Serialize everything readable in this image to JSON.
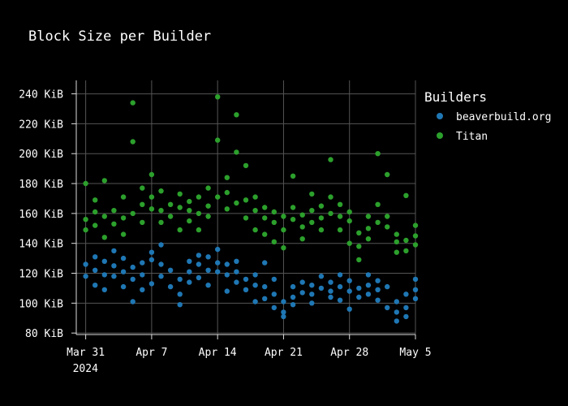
{
  "chart_data": {
    "type": "scatter",
    "title": "Block Size per Builder",
    "xlabel": "",
    "ylabel": "",
    "x_range": [
      "2024-03-30",
      "2024-05-05"
    ],
    "y_range": [
      79,
      249
    ],
    "y_ticks": [
      {
        "value": 80,
        "label": "80 KiB"
      },
      {
        "value": 100,
        "label": "100 KiB"
      },
      {
        "value": 120,
        "label": "120 KiB"
      },
      {
        "value": 140,
        "label": "140 KiB"
      },
      {
        "value": 160,
        "label": "160 KiB"
      },
      {
        "value": 180,
        "label": "180 KiB"
      },
      {
        "value": 200,
        "label": "200 KiB"
      },
      {
        "value": 220,
        "label": "220 KiB"
      },
      {
        "value": 240,
        "label": "240 KiB"
      }
    ],
    "x_ticks": [
      {
        "date": "2024-03-31",
        "label": "Mar 31",
        "sublabel": "2024"
      },
      {
        "date": "2024-04-07",
        "label": "Apr 7",
        "sublabel": ""
      },
      {
        "date": "2024-04-14",
        "label": "Apr 14",
        "sublabel": ""
      },
      {
        "date": "2024-04-21",
        "label": "Apr 21",
        "sublabel": ""
      },
      {
        "date": "2024-04-28",
        "label": "Apr 28",
        "sublabel": ""
      },
      {
        "date": "2024-05-05",
        "label": "May 5",
        "sublabel": ""
      }
    ],
    "grid": true,
    "legend": {
      "title": "Builders",
      "position": "right"
    },
    "series": [
      {
        "name": "beaverbuild.org",
        "color": "#1f77b4",
        "points": [
          [
            "2024-03-31",
            118
          ],
          [
            "2024-03-31",
            126
          ],
          [
            "2024-04-01",
            131
          ],
          [
            "2024-04-01",
            112
          ],
          [
            "2024-04-01",
            122
          ],
          [
            "2024-04-02",
            119
          ],
          [
            "2024-04-02",
            128
          ],
          [
            "2024-04-02",
            109
          ],
          [
            "2024-04-03",
            125
          ],
          [
            "2024-04-03",
            135
          ],
          [
            "2024-04-03",
            118
          ],
          [
            "2024-04-04",
            121
          ],
          [
            "2024-04-04",
            111
          ],
          [
            "2024-04-04",
            130
          ],
          [
            "2024-04-05",
            116
          ],
          [
            "2024-04-05",
            101
          ],
          [
            "2024-04-05",
            124
          ],
          [
            "2024-04-06",
            119
          ],
          [
            "2024-04-06",
            109
          ],
          [
            "2024-04-06",
            127
          ],
          [
            "2024-04-07",
            129
          ],
          [
            "2024-04-07",
            134
          ],
          [
            "2024-04-07",
            113
          ],
          [
            "2024-04-08",
            126
          ],
          [
            "2024-04-08",
            118
          ],
          [
            "2024-04-08",
            139
          ],
          [
            "2024-04-09",
            122
          ],
          [
            "2024-04-09",
            111
          ],
          [
            "2024-04-10",
            116
          ],
          [
            "2024-04-10",
            99
          ],
          [
            "2024-04-10",
            106
          ],
          [
            "2024-04-11",
            121
          ],
          [
            "2024-04-11",
            128
          ],
          [
            "2024-04-11",
            114
          ],
          [
            "2024-04-12",
            126
          ],
          [
            "2024-04-12",
            117
          ],
          [
            "2024-04-12",
            132
          ],
          [
            "2024-04-13",
            122
          ],
          [
            "2024-04-13",
            131
          ],
          [
            "2024-04-13",
            112
          ],
          [
            "2024-04-14",
            127
          ],
          [
            "2024-04-14",
            121
          ],
          [
            "2024-04-14",
            136
          ],
          [
            "2024-04-15",
            119
          ],
          [
            "2024-04-15",
            126
          ],
          [
            "2024-04-15",
            108
          ],
          [
            "2024-04-16",
            121
          ],
          [
            "2024-04-16",
            114
          ],
          [
            "2024-04-16",
            128
          ],
          [
            "2024-04-17",
            116
          ],
          [
            "2024-04-17",
            109
          ],
          [
            "2024-04-18",
            112
          ],
          [
            "2024-04-18",
            101
          ],
          [
            "2024-04-18",
            119
          ],
          [
            "2024-04-19",
            111
          ],
          [
            "2024-04-19",
            127
          ],
          [
            "2024-04-19",
            103
          ],
          [
            "2024-04-20",
            106
          ],
          [
            "2024-04-20",
            116
          ],
          [
            "2024-04-20",
            97
          ],
          [
            "2024-04-21",
            101
          ],
          [
            "2024-04-21",
            94
          ],
          [
            "2024-04-21",
            91
          ],
          [
            "2024-04-22",
            104
          ],
          [
            "2024-04-22",
            111
          ],
          [
            "2024-04-22",
            99
          ],
          [
            "2024-04-23",
            107
          ],
          [
            "2024-04-23",
            114
          ],
          [
            "2024-04-24",
            106
          ],
          [
            "2024-04-24",
            112
          ],
          [
            "2024-04-24",
            100
          ],
          [
            "2024-04-25",
            110
          ],
          [
            "2024-04-25",
            118
          ],
          [
            "2024-04-26",
            108
          ],
          [
            "2024-04-26",
            114
          ],
          [
            "2024-04-26",
            104
          ],
          [
            "2024-04-27",
            111
          ],
          [
            "2024-04-27",
            119
          ],
          [
            "2024-04-27",
            102
          ],
          [
            "2024-04-28",
            108
          ],
          [
            "2024-04-28",
            115
          ],
          [
            "2024-04-28",
            96
          ],
          [
            "2024-04-29",
            110
          ],
          [
            "2024-04-29",
            104
          ],
          [
            "2024-04-30",
            112
          ],
          [
            "2024-04-30",
            106
          ],
          [
            "2024-04-30",
            119
          ],
          [
            "2024-05-01",
            109
          ],
          [
            "2024-05-01",
            115
          ],
          [
            "2024-05-01",
            102
          ],
          [
            "2024-05-02",
            111
          ],
          [
            "2024-05-02",
            97
          ],
          [
            "2024-05-03",
            94
          ],
          [
            "2024-05-03",
            88
          ],
          [
            "2024-05-03",
            101
          ],
          [
            "2024-05-04",
            97
          ],
          [
            "2024-05-04",
            106
          ],
          [
            "2024-05-04",
            91
          ],
          [
            "2024-05-05",
            109
          ],
          [
            "2024-05-05",
            116
          ],
          [
            "2024-05-05",
            103
          ]
        ]
      },
      {
        "name": "Titan",
        "color": "#2ca02c",
        "points": [
          [
            "2024-03-31",
            156
          ],
          [
            "2024-03-31",
            149
          ],
          [
            "2024-03-31",
            180
          ],
          [
            "2024-04-01",
            161
          ],
          [
            "2024-04-01",
            169
          ],
          [
            "2024-04-01",
            152
          ],
          [
            "2024-04-02",
            158
          ],
          [
            "2024-04-02",
            144
          ],
          [
            "2024-04-02",
            182
          ],
          [
            "2024-04-03",
            153
          ],
          [
            "2024-04-03",
            162
          ],
          [
            "2024-04-04",
            157
          ],
          [
            "2024-04-04",
            171
          ],
          [
            "2024-04-04",
            146
          ],
          [
            "2024-04-05",
            160
          ],
          [
            "2024-04-05",
            234
          ],
          [
            "2024-04-05",
            208
          ],
          [
            "2024-04-06",
            166
          ],
          [
            "2024-04-06",
            154
          ],
          [
            "2024-04-06",
            177
          ],
          [
            "2024-04-07",
            171
          ],
          [
            "2024-04-07",
            163
          ],
          [
            "2024-04-07",
            186
          ],
          [
            "2024-04-08",
            162
          ],
          [
            "2024-04-08",
            175
          ],
          [
            "2024-04-08",
            154
          ],
          [
            "2024-04-09",
            166
          ],
          [
            "2024-04-09",
            158
          ],
          [
            "2024-04-10",
            164
          ],
          [
            "2024-04-10",
            173
          ],
          [
            "2024-04-10",
            149
          ],
          [
            "2024-04-11",
            162
          ],
          [
            "2024-04-11",
            168
          ],
          [
            "2024-04-11",
            155
          ],
          [
            "2024-04-12",
            160
          ],
          [
            "2024-04-12",
            171
          ],
          [
            "2024-04-12",
            149
          ],
          [
            "2024-04-13",
            165
          ],
          [
            "2024-04-13",
            158
          ],
          [
            "2024-04-13",
            177
          ],
          [
            "2024-04-14",
            171
          ],
          [
            "2024-04-14",
            238
          ],
          [
            "2024-04-14",
            209
          ],
          [
            "2024-04-15",
            163
          ],
          [
            "2024-04-15",
            174
          ],
          [
            "2024-04-15",
            184
          ],
          [
            "2024-04-16",
            167
          ],
          [
            "2024-04-16",
            201
          ],
          [
            "2024-04-16",
            226
          ],
          [
            "2024-04-17",
            169
          ],
          [
            "2024-04-17",
            157
          ],
          [
            "2024-04-17",
            192
          ],
          [
            "2024-04-18",
            162
          ],
          [
            "2024-04-18",
            149
          ],
          [
            "2024-04-18",
            171
          ],
          [
            "2024-04-19",
            157
          ],
          [
            "2024-04-19",
            164
          ],
          [
            "2024-04-19",
            146
          ],
          [
            "2024-04-20",
            154
          ],
          [
            "2024-04-20",
            161
          ],
          [
            "2024-04-20",
            141
          ],
          [
            "2024-04-21",
            149
          ],
          [
            "2024-04-21",
            158
          ],
          [
            "2024-04-21",
            137
          ],
          [
            "2024-04-22",
            156
          ],
          [
            "2024-04-22",
            164
          ],
          [
            "2024-04-22",
            185
          ],
          [
            "2024-04-23",
            151
          ],
          [
            "2024-04-23",
            159
          ],
          [
            "2024-04-23",
            143
          ],
          [
            "2024-04-24",
            154
          ],
          [
            "2024-04-24",
            162
          ],
          [
            "2024-04-24",
            173
          ],
          [
            "2024-04-25",
            157
          ],
          [
            "2024-04-25",
            149
          ],
          [
            "2024-04-25",
            165
          ],
          [
            "2024-04-26",
            160
          ],
          [
            "2024-04-26",
            196
          ],
          [
            "2024-04-26",
            171
          ],
          [
            "2024-04-27",
            158
          ],
          [
            "2024-04-27",
            149
          ],
          [
            "2024-04-27",
            166
          ],
          [
            "2024-04-28",
            155
          ],
          [
            "2024-04-28",
            161
          ],
          [
            "2024-04-28",
            140
          ],
          [
            "2024-04-29",
            147
          ],
          [
            "2024-04-29",
            129
          ],
          [
            "2024-04-29",
            138
          ],
          [
            "2024-04-30",
            150
          ],
          [
            "2024-04-30",
            158
          ],
          [
            "2024-04-30",
            143
          ],
          [
            "2024-05-01",
            154
          ],
          [
            "2024-05-01",
            166
          ],
          [
            "2024-05-01",
            200
          ],
          [
            "2024-05-02",
            151
          ],
          [
            "2024-05-02",
            186
          ],
          [
            "2024-05-02",
            158
          ],
          [
            "2024-05-03",
            141
          ],
          [
            "2024-05-03",
            134
          ],
          [
            "2024-05-03",
            146
          ],
          [
            "2024-05-04",
            142
          ],
          [
            "2024-05-04",
            135
          ],
          [
            "2024-05-04",
            172
          ],
          [
            "2024-05-05",
            152
          ],
          [
            "2024-05-05",
            145
          ],
          [
            "2024-05-05",
            139
          ]
        ]
      }
    ]
  }
}
